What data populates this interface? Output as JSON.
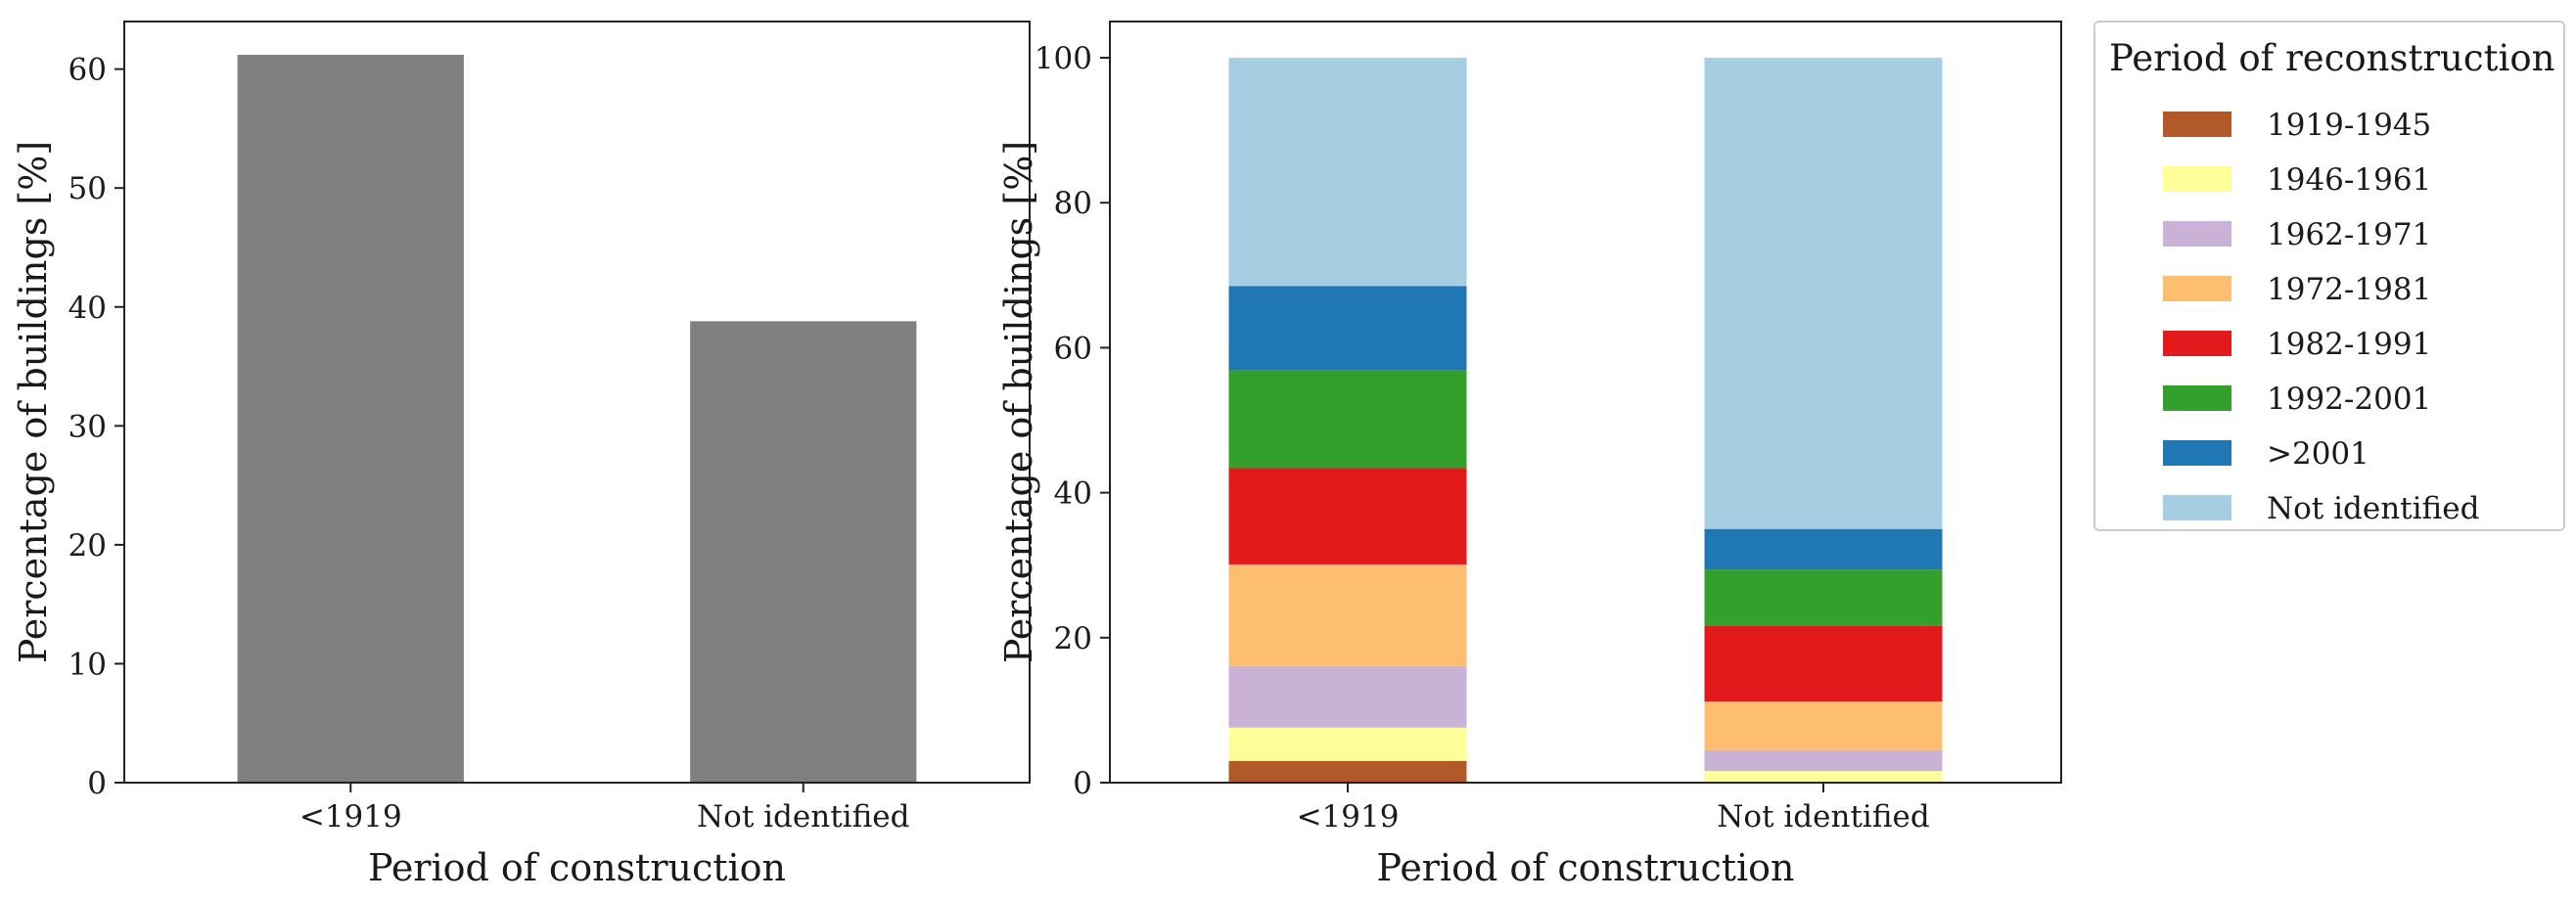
{
  "chart_data": [
    {
      "type": "bar",
      "categories": [
        "<1919",
        "Not identified"
      ],
      "values": [
        61.2,
        38.8
      ],
      "xlabel": "Period of construction",
      "ylabel": "Percentage of buildings [%]",
      "ylim": [
        0,
        64
      ],
      "yticks": [
        "0",
        "10",
        "20",
        "30",
        "40",
        "50",
        "60"
      ],
      "bar_color": "#808080",
      "grid": false
    },
    {
      "type": "bar",
      "stacked": true,
      "categories": [
        "<1919",
        "Not identified"
      ],
      "series": [
        {
          "name": "1919-1945",
          "color": "#b15928",
          "values": [
            3.0,
            0.0
          ]
        },
        {
          "name": "1946-1961",
          "color": "#ffff99",
          "values": [
            4.6,
            1.6
          ]
        },
        {
          "name": "1962-1971",
          "color": "#cab2d6",
          "values": [
            8.5,
            2.9
          ]
        },
        {
          "name": "1972-1981",
          "color": "#fdbf6f",
          "values": [
            14.0,
            6.7
          ]
        },
        {
          "name": "1982-1991",
          "color": "#e31a1c",
          "values": [
            13.3,
            10.4
          ]
        },
        {
          "name": "1992-2001",
          "color": "#33a02c",
          "values": [
            13.5,
            7.8
          ]
        },
        {
          "name": ">2001",
          "color": "#1f78b4",
          "values": [
            11.6,
            5.6
          ]
        },
        {
          "name": "Not identified",
          "color": "#a6cee3",
          "values": [
            31.5,
            65.0
          ]
        }
      ],
      "xlabel": "Period of construction",
      "ylabel": "Percentage of buildings [%]",
      "ylim": [
        0,
        105
      ],
      "yticks": [
        "0",
        "20",
        "40",
        "60",
        "80",
        "100"
      ],
      "legend": {
        "title": "Period of reconstruction",
        "placement": "right-outside-top"
      },
      "grid": false
    }
  ]
}
